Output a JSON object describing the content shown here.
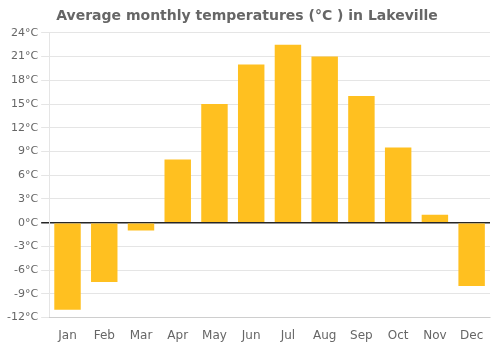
{
  "chart_data": {
    "type": "bar",
    "title": "Average monthly temperatures (°C ) in Lakeville",
    "categories": [
      "Jan",
      "Feb",
      "Mar",
      "Apr",
      "May",
      "Jun",
      "Jul",
      "Aug",
      "Sep",
      "Oct",
      "Nov",
      "Dec"
    ],
    "values": [
      -11,
      -7.5,
      -1,
      8,
      15,
      20,
      22.5,
      21,
      16,
      9.5,
      1,
      -8
    ],
    "color": "#FFC020",
    "ylim": [
      -12,
      24
    ],
    "yticks": [
      {
        "value": -12,
        "label": "-12°C"
      },
      {
        "value": -9,
        "label": "-9°C"
      },
      {
        "value": -6,
        "label": "-6°C"
      },
      {
        "value": -3,
        "label": "-3°C"
      },
      {
        "value": 0,
        "label": "0°C"
      },
      {
        "value": 3,
        "label": "3°C"
      },
      {
        "value": 6,
        "label": "6°C"
      },
      {
        "value": 9,
        "label": "9°C"
      },
      {
        "value": 12,
        "label": "12°C"
      },
      {
        "value": 15,
        "label": "15°C"
      },
      {
        "value": 18,
        "label": "18°C"
      },
      {
        "value": 21,
        "label": "21°C"
      },
      {
        "value": 24,
        "label": "24°C"
      }
    ],
    "grid": true
  }
}
